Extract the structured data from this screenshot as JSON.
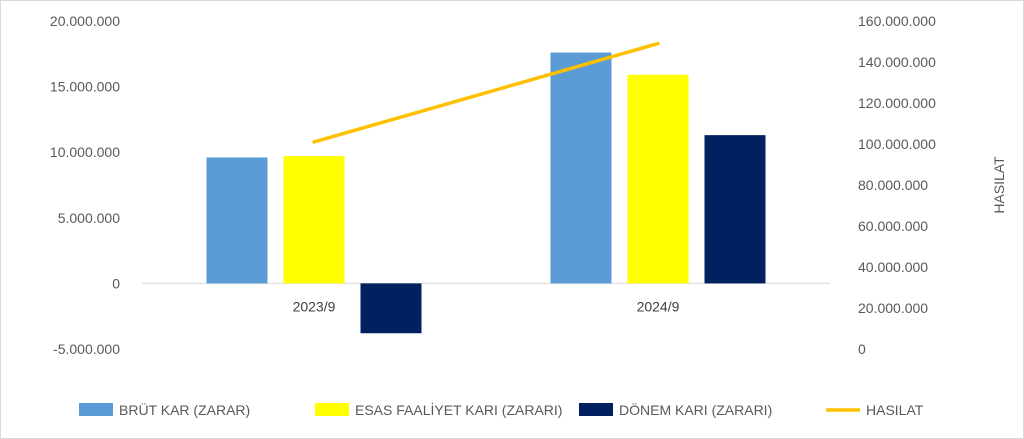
{
  "chart_data": {
    "type": "bar",
    "categories": [
      "2023/9",
      "2024/9"
    ],
    "series": [
      {
        "name": "BRÜT KAR (ZARAR)",
        "kind": "bar",
        "axis": "left",
        "color": "#5b9bd5",
        "values": [
          9600000,
          17600000
        ]
      },
      {
        "name": "ESAS FAALİYET KARI (ZARARI)",
        "kind": "bar",
        "axis": "left",
        "color": "#ffff00",
        "values": [
          9700000,
          15900000
        ]
      },
      {
        "name": "DÖNEM KARI (ZARARI)",
        "kind": "bar",
        "axis": "left",
        "color": "#002060",
        "values": [
          -3800000,
          11300000
        ]
      },
      {
        "name": "HASILAT",
        "kind": "line",
        "axis": "right",
        "color": "#ffc000",
        "values": [
          101000000,
          149000000
        ]
      }
    ],
    "left_axis": {
      "ylim": [
        -5000000,
        20000000
      ],
      "ticks": [
        20000000,
        15000000,
        10000000,
        5000000,
        0,
        -5000000
      ],
      "tick_labels": [
        "20.000.000",
        "15.000.000",
        "10.000.000",
        "5.000.000",
        "0",
        "-5.000.000"
      ]
    },
    "right_axis": {
      "ylabel": "HASILAT",
      "ylim": [
        0,
        160000000
      ],
      "ticks": [
        160000000,
        140000000,
        120000000,
        100000000,
        80000000,
        60000000,
        40000000,
        20000000,
        0
      ],
      "tick_labels": [
        "160.000.000",
        "140.000.000",
        "120.000.000",
        "100.000.000",
        "80.000.000",
        "60.000.000",
        "40.000.000",
        "20.000.000",
        "0"
      ]
    },
    "grid": false,
    "legend_position": "bottom"
  }
}
